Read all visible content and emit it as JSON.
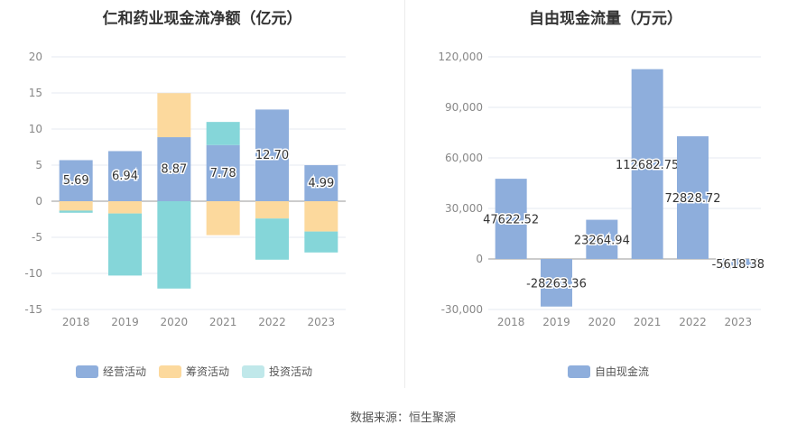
{
  "source": "数据来源：恒生聚源",
  "chart_data": [
    {
      "type": "bar",
      "title": "仁和药业现金流净额（亿元）",
      "categories": [
        "2018",
        "2019",
        "2020",
        "2021",
        "2022",
        "2023"
      ],
      "series": [
        {
          "name": "经营活动",
          "color": "#8eaedc",
          "values": [
            5.69,
            6.94,
            8.87,
            7.78,
            12.7,
            4.99
          ],
          "labels": [
            "5.69",
            "6.94",
            "8.87",
            "7.78",
            "12.70",
            "4.99"
          ]
        },
        {
          "name": "筹资活动",
          "color": "#fcd99d",
          "values": [
            -1.3,
            -1.7,
            6.1,
            -4.7,
            -2.4,
            -4.2
          ]
        },
        {
          "name": "投资活动",
          "color": "#85d6d9",
          "values": [
            -0.3,
            -8.6,
            -12.1,
            3.2,
            -5.7,
            -2.9
          ]
        }
      ],
      "stacked": true,
      "ylim": [
        -15,
        20
      ],
      "yticks": [
        "-15",
        "-10",
        "-5",
        "0",
        "5",
        "10",
        "15",
        "20"
      ],
      "legend_position": "bottom"
    },
    {
      "type": "bar",
      "title": "自由现金流量（万元）",
      "categories": [
        "2018",
        "2019",
        "2020",
        "2021",
        "2022",
        "2023"
      ],
      "series": [
        {
          "name": "自由现金流",
          "color": "#8eaedc",
          "values": [
            47622.52,
            -28263.36,
            23264.94,
            112682.75,
            72828.72,
            -5618.38
          ],
          "labels": [
            "47622.52",
            "-28263.36",
            "23264.94",
            "112682.75",
            "72828.72",
            "-5618.38"
          ]
        }
      ],
      "ylim": [
        -30000,
        120000
      ],
      "yticks": [
        "-30,000",
        "0",
        "30,000",
        "60,000",
        "90,000",
        "120,000"
      ],
      "legend_position": "bottom"
    }
  ]
}
